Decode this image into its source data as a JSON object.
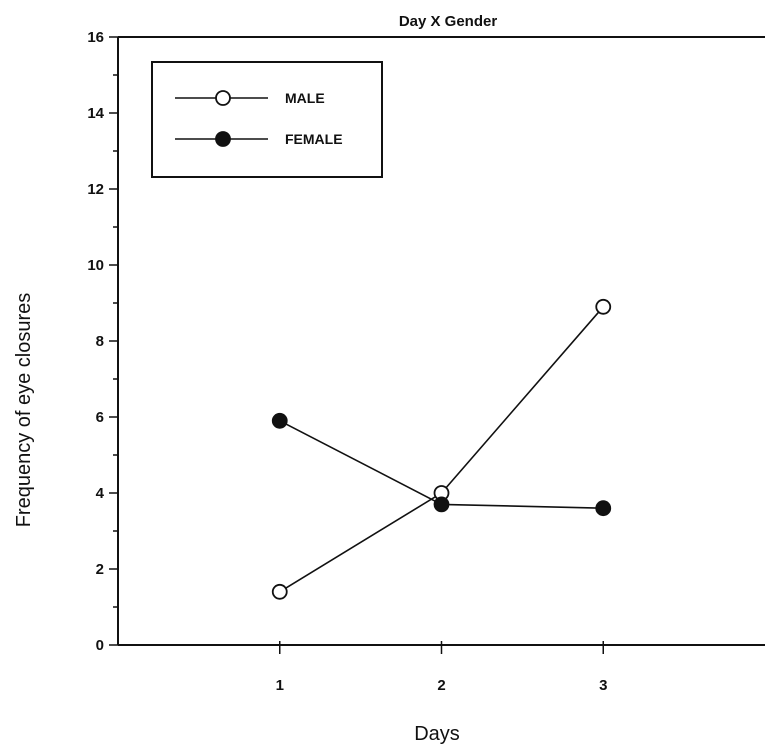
{
  "chart_data": {
    "type": "line",
    "title": "Day X Gender",
    "xlabel": "Days",
    "ylabel": "Frequency of eye closures",
    "x": [
      1,
      2,
      3
    ],
    "xlim": [
      0,
      4
    ],
    "ylim": [
      0,
      16
    ],
    "yticks": [
      0,
      2,
      4,
      6,
      8,
      10,
      12,
      14,
      16
    ],
    "xticks": [
      1,
      2,
      3
    ],
    "grid": false,
    "legend_position": "top-left",
    "series": [
      {
        "name": "MALE",
        "marker": "open-circle",
        "values": [
          1.4,
          4.0,
          8.9
        ]
      },
      {
        "name": "FEMALE",
        "marker": "filled-circle",
        "values": [
          5.9,
          3.7,
          3.6
        ]
      }
    ]
  }
}
